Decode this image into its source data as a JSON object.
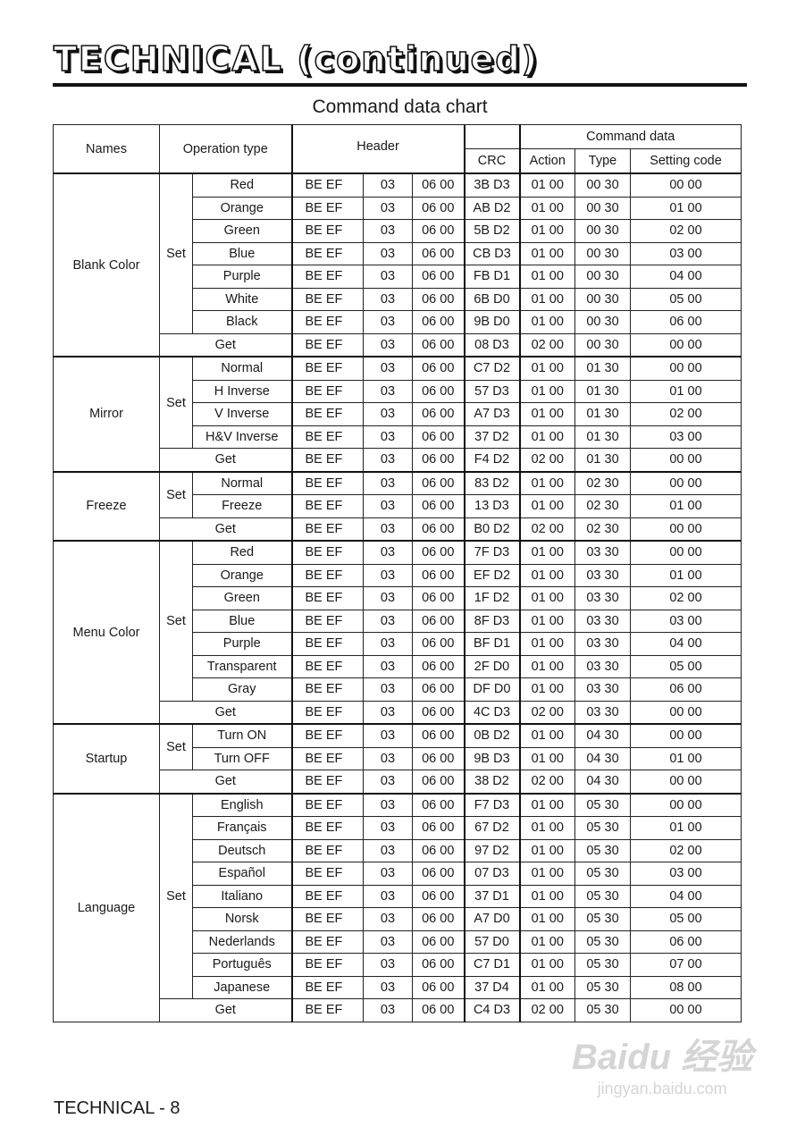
{
  "page_title": "TECHNICAL (continued)",
  "subtitle": "Command data chart",
  "footer": "TECHNICAL - 8",
  "watermark": {
    "logo": "Baidu 经验",
    "url": "jingyan.baidu.com"
  },
  "columns": {
    "names": "Names",
    "operation_type": "Operation type",
    "header": "Header",
    "command_data": "Command data",
    "crc": "CRC",
    "action": "Action",
    "type": "Type",
    "setting_code": "Setting code"
  },
  "set_label": "Set",
  "get_label": "Get",
  "header_bytes": [
    "BE  EF",
    "03",
    "06  00"
  ],
  "groups": [
    {
      "name": "Blank Color",
      "set": [
        {
          "option": "Red",
          "crc": "3B  D3",
          "action": "01  00",
          "type": "00  30",
          "setting": "00  00"
        },
        {
          "option": "Orange",
          "crc": "AB  D2",
          "action": "01  00",
          "type": "00  30",
          "setting": "01  00"
        },
        {
          "option": "Green",
          "crc": "5B  D2",
          "action": "01  00",
          "type": "00  30",
          "setting": "02  00"
        },
        {
          "option": "Blue",
          "crc": "CB  D3",
          "action": "01  00",
          "type": "00  30",
          "setting": "03  00"
        },
        {
          "option": "Purple",
          "crc": "FB  D1",
          "action": "01  00",
          "type": "00  30",
          "setting": "04  00"
        },
        {
          "option": "White",
          "crc": "6B  D0",
          "action": "01  00",
          "type": "00  30",
          "setting": "05  00"
        },
        {
          "option": "Black",
          "crc": "9B  D0",
          "action": "01  00",
          "type": "00  30",
          "setting": "06  00"
        }
      ],
      "get": {
        "crc": "08  D3",
        "action": "02  00",
        "type": "00  30",
        "setting": "00  00"
      }
    },
    {
      "name": "Mirror",
      "set": [
        {
          "option": "Normal",
          "crc": "C7  D2",
          "action": "01  00",
          "type": "01  30",
          "setting": "00  00"
        },
        {
          "option": "H Inverse",
          "crc": "57  D3",
          "action": "01  00",
          "type": "01  30",
          "setting": "01  00"
        },
        {
          "option": "V Inverse",
          "crc": "A7  D3",
          "action": "01  00",
          "type": "01  30",
          "setting": "02  00"
        },
        {
          "option": "H&V Inverse",
          "crc": "37  D2",
          "action": "01  00",
          "type": "01  30",
          "setting": "03  00"
        }
      ],
      "get": {
        "crc": "F4  D2",
        "action": "02  00",
        "type": "01  30",
        "setting": "00  00"
      }
    },
    {
      "name": "Freeze",
      "set": [
        {
          "option": "Normal",
          "crc": "83  D2",
          "action": "01  00",
          "type": "02  30",
          "setting": "00  00"
        },
        {
          "option": "Freeze",
          "crc": "13  D3",
          "action": "01  00",
          "type": "02  30",
          "setting": "01  00"
        }
      ],
      "get": {
        "crc": "B0  D2",
        "action": "02  00",
        "type": "02  30",
        "setting": "00  00"
      }
    },
    {
      "name": "Menu Color",
      "set": [
        {
          "option": "Red",
          "crc": "7F  D3",
          "action": "01  00",
          "type": "03  30",
          "setting": "00  00"
        },
        {
          "option": "Orange",
          "crc": "EF  D2",
          "action": "01  00",
          "type": "03  30",
          "setting": "01  00"
        },
        {
          "option": "Green",
          "crc": "1F  D2",
          "action": "01  00",
          "type": "03  30",
          "setting": "02  00"
        },
        {
          "option": "Blue",
          "crc": "8F  D3",
          "action": "01  00",
          "type": "03  30",
          "setting": "03  00"
        },
        {
          "option": "Purple",
          "crc": "BF  D1",
          "action": "01  00",
          "type": "03  30",
          "setting": "04  00"
        },
        {
          "option": "Transparent",
          "crc": "2F  D0",
          "action": "01  00",
          "type": "03  30",
          "setting": "05  00"
        },
        {
          "option": "Gray",
          "crc": "DF  D0",
          "action": "01  00",
          "type": "03  30",
          "setting": "06  00"
        }
      ],
      "get": {
        "crc": "4C  D3",
        "action": "02  00",
        "type": "03  30",
        "setting": "00  00"
      }
    },
    {
      "name": "Startup",
      "set": [
        {
          "option": "Turn ON",
          "crc": "0B  D2",
          "action": "01  00",
          "type": "04  30",
          "setting": "00  00"
        },
        {
          "option": "Turn OFF",
          "crc": "9B  D3",
          "action": "01  00",
          "type": "04  30",
          "setting": "01  00"
        }
      ],
      "get": {
        "crc": "38  D2",
        "action": "02  00",
        "type": "04  30",
        "setting": "00  00"
      }
    },
    {
      "name": "Language",
      "set": [
        {
          "option": "English",
          "crc": "F7  D3",
          "action": "01  00",
          "type": "05  30",
          "setting": "00  00"
        },
        {
          "option": "Français",
          "crc": "67  D2",
          "action": "01  00",
          "type": "05  30",
          "setting": "01  00"
        },
        {
          "option": "Deutsch",
          "crc": "97  D2",
          "action": "01  00",
          "type": "05  30",
          "setting": "02  00"
        },
        {
          "option": "Español",
          "crc": "07  D3",
          "action": "01  00",
          "type": "05  30",
          "setting": "03  00"
        },
        {
          "option": "Italiano",
          "crc": "37  D1",
          "action": "01  00",
          "type": "05  30",
          "setting": "04  00"
        },
        {
          "option": "Norsk",
          "crc": "A7  D0",
          "action": "01  00",
          "type": "05  30",
          "setting": "05  00"
        },
        {
          "option": "Nederlands",
          "crc": "57  D0",
          "action": "01  00",
          "type": "05  30",
          "setting": "06  00"
        },
        {
          "option": "Português",
          "crc": "C7  D1",
          "action": "01  00",
          "type": "05  30",
          "setting": "07  00"
        },
        {
          "option": "Japanese",
          "crc": "37  D4",
          "action": "01  00",
          "type": "05  30",
          "setting": "08  00"
        }
      ],
      "get": {
        "crc": "C4  D3",
        "action": "02  00",
        "type": "05  30",
        "setting": "00  00"
      }
    }
  ]
}
